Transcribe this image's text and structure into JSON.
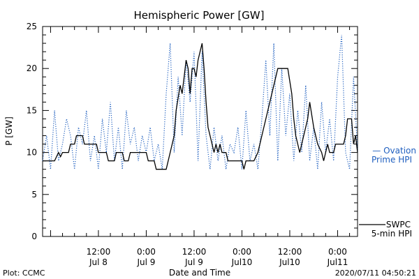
{
  "chart_data": {
    "type": "line",
    "title": "Hemispheric Power [GW]",
    "xlabel": "Date and Time",
    "ylabel": "P [GW]",
    "ylim": [
      0,
      25
    ],
    "yticks": [
      0,
      5,
      10,
      15,
      20,
      25
    ],
    "xlim": [
      "2020-07-07 22:00",
      "2020-07-11 05:00"
    ],
    "xticks": [
      {
        "x": "2020-07-08 12:00",
        "time": "12:00",
        "date": "Jul 8"
      },
      {
        "x": "2020-07-09 00:00",
        "time": "0:00",
        "date": "Jul 9"
      },
      {
        "x": "2020-07-09 12:00",
        "time": "12:00",
        "date": "Jul 9"
      },
      {
        "x": "2020-07-10 00:00",
        "time": "0:00",
        "date": "Jul10"
      },
      {
        "x": "2020-07-10 12:00",
        "time": "12:00",
        "date": "Jul10"
      },
      {
        "x": "2020-07-11 00:00",
        "time": "0:00",
        "date": "Jul11"
      }
    ],
    "series": [
      {
        "name": "SWPC 5-min HPI",
        "legend_lines": [
          "SWPC",
          "5-min HPI"
        ],
        "color": "#000000",
        "style": "solid",
        "points": [
          [
            "2020-07-07 22:00",
            9
          ],
          [
            "2020-07-08 01:00",
            9
          ],
          [
            "2020-07-08 02:00",
            10
          ],
          [
            "2020-07-08 02:30",
            9.5
          ],
          [
            "2020-07-08 03:00",
            10
          ],
          [
            "2020-07-08 04:30",
            10
          ],
          [
            "2020-07-08 05:00",
            11
          ],
          [
            "2020-07-08 06:00",
            11
          ],
          [
            "2020-07-08 06:30",
            12
          ],
          [
            "2020-07-08 08:00",
            12
          ],
          [
            "2020-07-08 08:30",
            11
          ],
          [
            "2020-07-08 11:30",
            11
          ],
          [
            "2020-07-08 12:00",
            10
          ],
          [
            "2020-07-08 14:00",
            10
          ],
          [
            "2020-07-08 14:30",
            9
          ],
          [
            "2020-07-08 16:00",
            9
          ],
          [
            "2020-07-08 16:30",
            10
          ],
          [
            "2020-07-08 18:00",
            10
          ],
          [
            "2020-07-08 18:30",
            9
          ],
          [
            "2020-07-08 19:30",
            9
          ],
          [
            "2020-07-08 20:00",
            10
          ],
          [
            "2020-07-09 00:00",
            10
          ],
          [
            "2020-07-09 00:30",
            9
          ],
          [
            "2020-07-09 02:00",
            9
          ],
          [
            "2020-07-09 02:30",
            8
          ],
          [
            "2020-07-09 05:00",
            8
          ],
          [
            "2020-07-09 06:00",
            10
          ],
          [
            "2020-07-09 07:00",
            12
          ],
          [
            "2020-07-09 07:30",
            15
          ],
          [
            "2020-07-09 08:30",
            18
          ],
          [
            "2020-07-09 09:00",
            17
          ],
          [
            "2020-07-09 09:30",
            19
          ],
          [
            "2020-07-09 10:00",
            21
          ],
          [
            "2020-07-09 10:30",
            20
          ],
          [
            "2020-07-09 11:00",
            17
          ],
          [
            "2020-07-09 11:30",
            20
          ],
          [
            "2020-07-09 12:00",
            20
          ],
          [
            "2020-07-09 12:30",
            19
          ],
          [
            "2020-07-09 13:00",
            21
          ],
          [
            "2020-07-09 13:30",
            22
          ],
          [
            "2020-07-09 14:00",
            23
          ],
          [
            "2020-07-09 14:30",
            20
          ],
          [
            "2020-07-09 15:00",
            16
          ],
          [
            "2020-07-09 15:30",
            13
          ],
          [
            "2020-07-09 16:00",
            12
          ],
          [
            "2020-07-09 17:00",
            10
          ],
          [
            "2020-07-09 17:30",
            11
          ],
          [
            "2020-07-09 18:00",
            10
          ],
          [
            "2020-07-09 18:30",
            11
          ],
          [
            "2020-07-09 19:00",
            10
          ],
          [
            "2020-07-09 20:00",
            10
          ],
          [
            "2020-07-09 20:30",
            9
          ],
          [
            "2020-07-10 00:00",
            9
          ],
          [
            "2020-07-10 00:30",
            8
          ],
          [
            "2020-07-10 01:00",
            9
          ],
          [
            "2020-07-10 03:00",
            9
          ],
          [
            "2020-07-10 04:00",
            10
          ],
          [
            "2020-07-10 05:00",
            12
          ],
          [
            "2020-07-10 06:00",
            14
          ],
          [
            "2020-07-10 07:00",
            16
          ],
          [
            "2020-07-10 08:00",
            18
          ],
          [
            "2020-07-10 09:00",
            20
          ],
          [
            "2020-07-10 11:30",
            20
          ],
          [
            "2020-07-10 12:30",
            17
          ],
          [
            "2020-07-10 13:00",
            14
          ],
          [
            "2020-07-10 13:30",
            12
          ],
          [
            "2020-07-10 14:00",
            11
          ],
          [
            "2020-07-10 14:30",
            10
          ],
          [
            "2020-07-10 15:30",
            12
          ],
          [
            "2020-07-10 16:30",
            14
          ],
          [
            "2020-07-10 17:00",
            16
          ],
          [
            "2020-07-10 18:00",
            13
          ],
          [
            "2020-07-10 19:00",
            11
          ],
          [
            "2020-07-10 20:00",
            10
          ],
          [
            "2020-07-10 20:30",
            9
          ],
          [
            "2020-07-10 21:00",
            10
          ],
          [
            "2020-07-10 21:30",
            11
          ],
          [
            "2020-07-10 22:00",
            10
          ],
          [
            "2020-07-10 23:00",
            10
          ],
          [
            "2020-07-10 23:30",
            11
          ],
          [
            "2020-07-11 01:30",
            11
          ],
          [
            "2020-07-11 02:00",
            12
          ],
          [
            "2020-07-11 02:30",
            14
          ],
          [
            "2020-07-11 03:30",
            14
          ],
          [
            "2020-07-11 04:00",
            11
          ],
          [
            "2020-07-11 04:30",
            12
          ],
          [
            "2020-07-11 05:00",
            10
          ]
        ]
      },
      {
        "name": "Ovation Prime HPI",
        "legend_lines": [
          "— Ovation",
          "Prime HPI"
        ],
        "color": "#1f5fbf",
        "style": "dotted",
        "points": [
          [
            "2020-07-07 22:00",
            9
          ],
          [
            "2020-07-07 23:00",
            12
          ],
          [
            "2020-07-08 00:00",
            8
          ],
          [
            "2020-07-08 01:00",
            15
          ],
          [
            "2020-07-08 02:00",
            9
          ],
          [
            "2020-07-08 03:00",
            11
          ],
          [
            "2020-07-08 04:00",
            14
          ],
          [
            "2020-07-08 05:00",
            12
          ],
          [
            "2020-07-08 06:00",
            8
          ],
          [
            "2020-07-08 07:00",
            13
          ],
          [
            "2020-07-08 08:00",
            11
          ],
          [
            "2020-07-08 09:00",
            15
          ],
          [
            "2020-07-08 10:00",
            9
          ],
          [
            "2020-07-08 11:00",
            12
          ],
          [
            "2020-07-08 12:00",
            8
          ],
          [
            "2020-07-08 13:00",
            14
          ],
          [
            "2020-07-08 14:00",
            10
          ],
          [
            "2020-07-08 15:00",
            16
          ],
          [
            "2020-07-08 16:00",
            9
          ],
          [
            "2020-07-08 17:00",
            13
          ],
          [
            "2020-07-08 18:00",
            8
          ],
          [
            "2020-07-08 19:00",
            15
          ],
          [
            "2020-07-08 20:00",
            11
          ],
          [
            "2020-07-08 21:00",
            13
          ],
          [
            "2020-07-08 22:00",
            9
          ],
          [
            "2020-07-08 23:00",
            12
          ],
          [
            "2020-07-09 00:00",
            10
          ],
          [
            "2020-07-09 01:00",
            13
          ],
          [
            "2020-07-09 02:00",
            9
          ],
          [
            "2020-07-09 03:00",
            11
          ],
          [
            "2020-07-09 04:00",
            8
          ],
          [
            "2020-07-09 05:00",
            17
          ],
          [
            "2020-07-09 06:00",
            23
          ],
          [
            "2020-07-09 07:00",
            10
          ],
          [
            "2020-07-09 08:00",
            19
          ],
          [
            "2020-07-09 09:00",
            12
          ],
          [
            "2020-07-09 10:00",
            21
          ],
          [
            "2020-07-09 11:00",
            16
          ],
          [
            "2020-07-09 12:00",
            22
          ],
          [
            "2020-07-09 13:00",
            9
          ],
          [
            "2020-07-09 14:00",
            22
          ],
          [
            "2020-07-09 15:00",
            12
          ],
          [
            "2020-07-09 16:00",
            8
          ],
          [
            "2020-07-09 17:00",
            13
          ],
          [
            "2020-07-09 18:00",
            9
          ],
          [
            "2020-07-09 19:00",
            12
          ],
          [
            "2020-07-09 20:00",
            8
          ],
          [
            "2020-07-09 21:00",
            11
          ],
          [
            "2020-07-09 22:00",
            10
          ],
          [
            "2020-07-09 23:00",
            13
          ],
          [
            "2020-07-10 00:00",
            8
          ],
          [
            "2020-07-10 01:00",
            15
          ],
          [
            "2020-07-10 02:00",
            9
          ],
          [
            "2020-07-10 03:00",
            11
          ],
          [
            "2020-07-10 04:00",
            8
          ],
          [
            "2020-07-10 05:00",
            14
          ],
          [
            "2020-07-10 06:00",
            21
          ],
          [
            "2020-07-10 07:00",
            12
          ],
          [
            "2020-07-10 08:00",
            23
          ],
          [
            "2020-07-10 09:00",
            9
          ],
          [
            "2020-07-10 10:00",
            20
          ],
          [
            "2020-07-10 11:00",
            12
          ],
          [
            "2020-07-10 12:00",
            17
          ],
          [
            "2020-07-10 13:00",
            9
          ],
          [
            "2020-07-10 14:00",
            15
          ],
          [
            "2020-07-10 15:00",
            10
          ],
          [
            "2020-07-10 16:00",
            18
          ],
          [
            "2020-07-10 17:00",
            9
          ],
          [
            "2020-07-10 18:00",
            13
          ],
          [
            "2020-07-10 19:00",
            8
          ],
          [
            "2020-07-10 20:00",
            16
          ],
          [
            "2020-07-10 21:00",
            10
          ],
          [
            "2020-07-10 22:00",
            14
          ],
          [
            "2020-07-10 23:00",
            9
          ],
          [
            "2020-07-11 00:00",
            19
          ],
          [
            "2020-07-11 01:00",
            24
          ],
          [
            "2020-07-11 02:00",
            10
          ],
          [
            "2020-07-11 03:00",
            8
          ],
          [
            "2020-07-11 04:00",
            19
          ],
          [
            "2020-07-11 05:00",
            10
          ]
        ]
      }
    ]
  },
  "footer": {
    "left": "Plot: CCMC",
    "right": "2020/07/11 04:50:21"
  }
}
